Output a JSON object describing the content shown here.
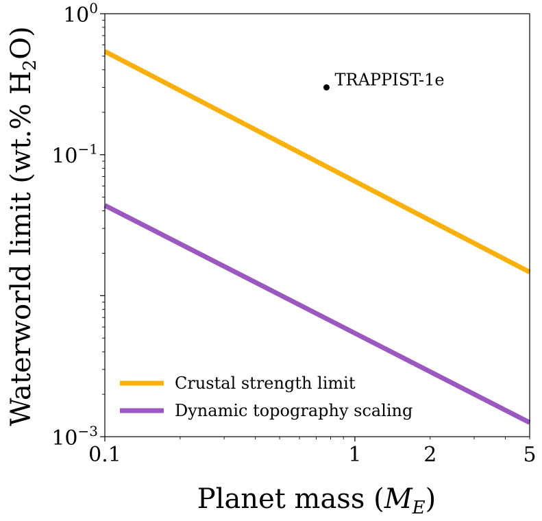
{
  "chart_data": {
    "type": "line",
    "xlabel": "Planet mass (M_E)",
    "ylabel": "Waterworld limit (wt.% H₂O)",
    "xscale": "log",
    "yscale": "log",
    "xlim": [
      0.1,
      5
    ],
    "ylim": [
      0.001,
      1
    ],
    "x_ticks": [
      {
        "value": 0.1,
        "label": "0.1"
      },
      {
        "value": 1,
        "label": "1"
      },
      {
        "value": 2,
        "label": "2"
      },
      {
        "value": 5,
        "label": "5"
      }
    ],
    "y_ticks": [
      {
        "value": 0.001,
        "base": "10",
        "exp": "−3"
      },
      {
        "value": 0.1,
        "base": "10",
        "exp": "−1"
      },
      {
        "value": 1,
        "base": "10",
        "exp": "0"
      }
    ],
    "grid": false,
    "legend_position": "bottom-left",
    "series": [
      {
        "name": "Crustal strength limit",
        "color": "#F9B00A",
        "x": [
          0.1,
          5
        ],
        "y": [
          0.54,
          0.0147
        ]
      },
      {
        "name": "Dynamic topography scaling",
        "color": "#9B59C0",
        "x": [
          0.1,
          5
        ],
        "y": [
          0.0437,
          0.00126
        ]
      }
    ],
    "annotations": [
      {
        "label": "TRAPPIST-1e",
        "x": 0.77,
        "y": 0.3,
        "color": "#000000"
      }
    ]
  }
}
